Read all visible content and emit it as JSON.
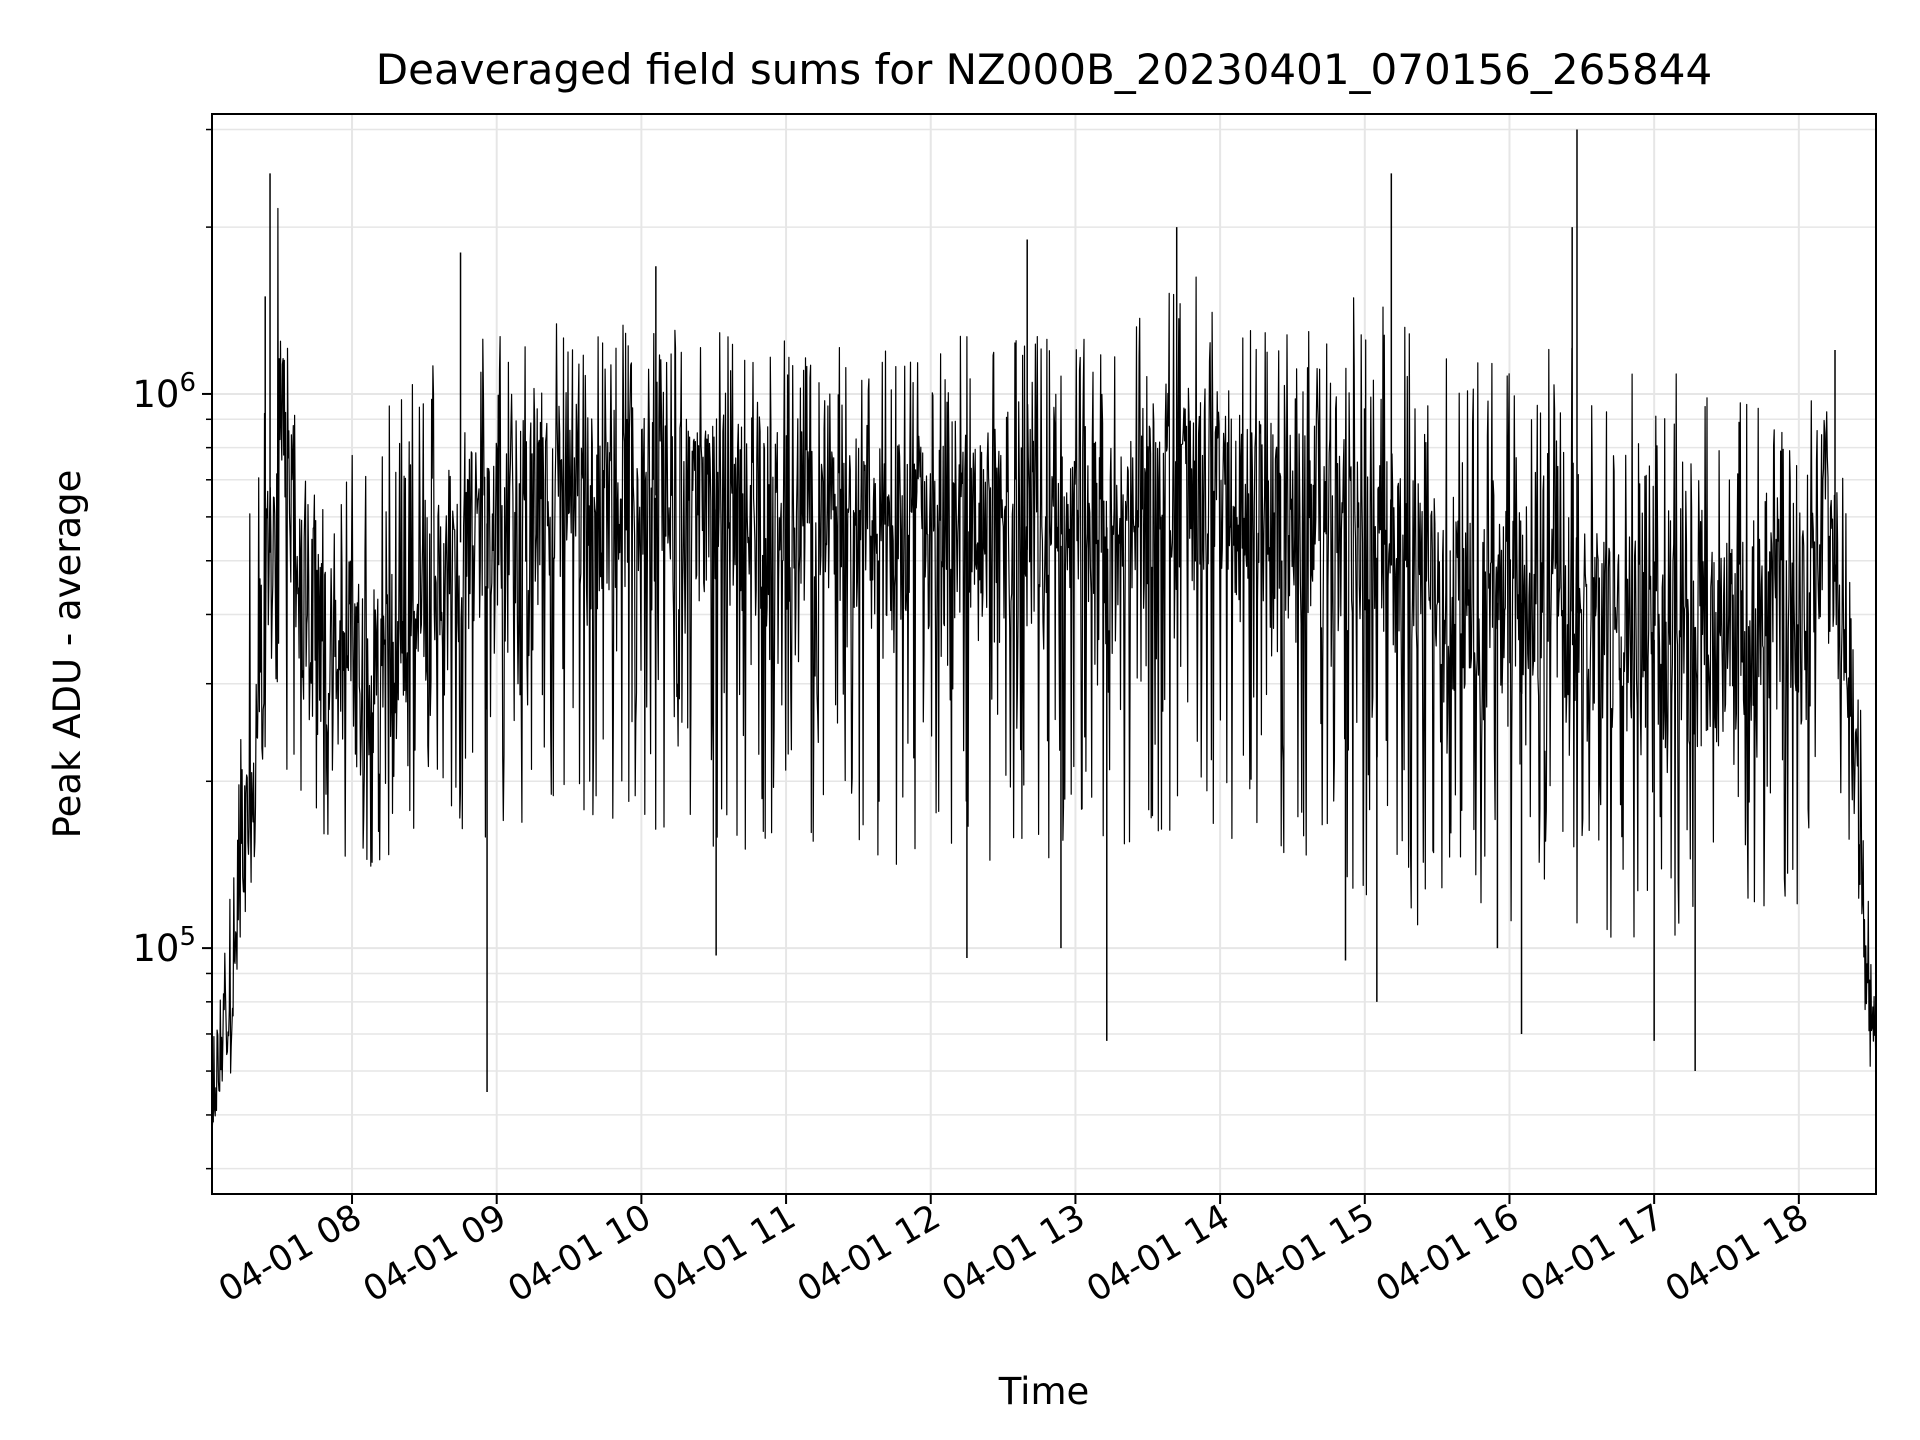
{
  "chart_data": {
    "type": "line",
    "title": "Deaveraged field sums for NZ000B_20230401_070156_265844",
    "xlabel": "Time",
    "ylabel": "Peak ADU - average",
    "yscale": "log",
    "ylim": [
      36000,
      3200000
    ],
    "xlim": [
      "2023-04-01T07:01:56",
      "2023-04-01T18:32:00"
    ],
    "grid": true,
    "line_color": "#000000",
    "grid_color": "#e6e6e6",
    "x_ticks": [
      {
        "value": "2023-04-01T08:00",
        "label": "04-01 08"
      },
      {
        "value": "2023-04-01T09:00",
        "label": "04-01 09"
      },
      {
        "value": "2023-04-01T10:00",
        "label": "04-01 10"
      },
      {
        "value": "2023-04-01T11:00",
        "label": "04-01 11"
      },
      {
        "value": "2023-04-01T12:00",
        "label": "04-01 12"
      },
      {
        "value": "2023-04-01T13:00",
        "label": "04-01 13"
      },
      {
        "value": "2023-04-01T14:00",
        "label": "04-01 14"
      },
      {
        "value": "2023-04-01T15:00",
        "label": "04-01 15"
      },
      {
        "value": "2023-04-01T16:00",
        "label": "04-01 16"
      },
      {
        "value": "2023-04-01T17:00",
        "label": "04-01 17"
      },
      {
        "value": "2023-04-01T18:00",
        "label": "04-01 18"
      }
    ],
    "y_ticks": [
      {
        "value": 100000,
        "base": "10",
        "exp": "5"
      },
      {
        "value": 1000000,
        "base": "10",
        "exp": "6"
      }
    ],
    "series": [
      {
        "values_description_note": "",
        "x": [
          "07:02",
          "07:10",
          "07:15",
          "07:20",
          "07:25",
          "07:30",
          "07:35",
          "07:40",
          "07:45",
          "07:50",
          "08:00",
          "08:10",
          "08:20",
          "08:30",
          "08:40",
          "08:50",
          "09:00",
          "09:15",
          "09:30",
          "09:45",
          "10:00",
          "10:15",
          "10:30",
          "10:45",
          "11:00",
          "11:15",
          "11:30",
          "11:45",
          "12:00",
          "12:15",
          "12:30",
          "12:45",
          "13:00",
          "13:15",
          "13:30",
          "13:45",
          "14:00",
          "14:15",
          "14:30",
          "14:45",
          "15:00",
          "15:15",
          "15:30",
          "15:45",
          "16:00",
          "16:15",
          "16:30",
          "16:45",
          "17:00",
          "17:15",
          "17:30",
          "17:45",
          "18:00",
          "18:10",
          "18:20",
          "18:30"
        ],
        "y": [
          48000,
          90000,
          130000,
          250000,
          450000,
          900000,
          600000,
          420000,
          380000,
          350000,
          320000,
          300000,
          330000,
          420000,
          520000,
          560000,
          600000,
          620000,
          640000,
          650000,
          660000,
          650000,
          620000,
          600000,
          590000,
          580000,
          560000,
          560000,
          550000,
          540000,
          530000,
          520000,
          540000,
          580000,
          640000,
          660000,
          640000,
          620000,
          580000,
          560000,
          520000,
          480000,
          450000,
          420000,
          420000,
          420000,
          400000,
          380000,
          360000,
          340000,
          360000,
          380000,
          420000,
          600000,
          350000,
          70000
        ],
        "low": [
          45000,
          70000,
          110000,
          140000,
          180000,
          200000,
          180000,
          170000,
          160000,
          150000,
          140000,
          140000,
          150000,
          160000,
          170000,
          160000,
          150000,
          160000,
          180000,
          170000,
          160000,
          160000,
          150000,
          150000,
          160000,
          150000,
          150000,
          140000,
          140000,
          150000,
          140000,
          140000,
          150000,
          150000,
          160000,
          160000,
          160000,
          150000,
          140000,
          130000,
          120000,
          110000,
          110000,
          110000,
          110000,
          110000,
          110000,
          100000,
          100000,
          95000,
          100000,
          110000,
          120000,
          180000,
          150000,
          65000
        ],
        "high": [
          52000,
          160000,
          400000,
          900000,
          1500000,
          2500000,
          1100000,
          800000,
          750000,
          700000,
          800000,
          900000,
          1000000,
          1300000,
          1400000,
          1300000,
          1300000,
          1400000,
          1400000,
          1300000,
          1400000,
          1400000,
          1300000,
          1300000,
          1300000,
          1300000,
          1200000,
          1200000,
          1200000,
          1300000,
          1400000,
          1300000,
          1300000,
          1400000,
          1500000,
          1700000,
          1500000,
          1400000,
          1300000,
          1300000,
          1600000,
          1400000,
          1300000,
          1200000,
          1200000,
          1300000,
          1200000,
          1200000,
          1100000,
          1100000,
          1000000,
          1000000,
          1000000,
          1200000,
          900000,
          120000
        ]
      }
    ],
    "spikes": [
      {
        "x": "07:26",
        "y": 2500000
      },
      {
        "x": "07:24",
        "y": 1500000
      },
      {
        "x": "08:45",
        "y": 1800000
      },
      {
        "x": "08:56",
        "y": 55000
      },
      {
        "x": "10:06",
        "y": 1700000
      },
      {
        "x": "10:31",
        "y": 97000
      },
      {
        "x": "12:15",
        "y": 96000
      },
      {
        "x": "12:40",
        "y": 1900000
      },
      {
        "x": "12:54",
        "y": 100000
      },
      {
        "x": "13:13",
        "y": 68000
      },
      {
        "x": "13:42",
        "y": 2000000
      },
      {
        "x": "14:52",
        "y": 95000
      },
      {
        "x": "15:05",
        "y": 80000
      },
      {
        "x": "15:11",
        "y": 2500000
      },
      {
        "x": "15:55",
        "y": 100000
      },
      {
        "x": "16:05",
        "y": 70000
      },
      {
        "x": "16:28",
        "y": 3000000
      },
      {
        "x": "16:26",
        "y": 2000000
      },
      {
        "x": "17:00",
        "y": 68000
      },
      {
        "x": "17:17",
        "y": 60000
      },
      {
        "x": "18:15",
        "y": 1200000
      },
      {
        "x": "18:31",
        "y": 70000
      }
    ]
  }
}
